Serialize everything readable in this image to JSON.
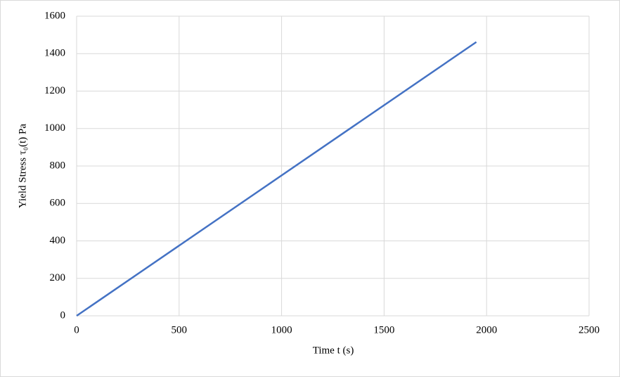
{
  "chart_data": {
    "type": "line",
    "xlabel": "Time t (s)",
    "ylabel": "Yield Stress  τ₀(t) Pa",
    "x": [
      0,
      1950
    ],
    "series": [
      {
        "name": "Yield Stress",
        "color": "#4472c4",
        "values": [
          0,
          1462
        ]
      }
    ],
    "xlim": [
      0,
      2500
    ],
    "xticks": [
      0,
      500,
      1000,
      1500,
      2000,
      2500
    ],
    "ylim": [
      0,
      1600
    ],
    "yticks": [
      0,
      200,
      400,
      600,
      800,
      1000,
      1200,
      1400,
      1600
    ],
    "grid": true
  }
}
